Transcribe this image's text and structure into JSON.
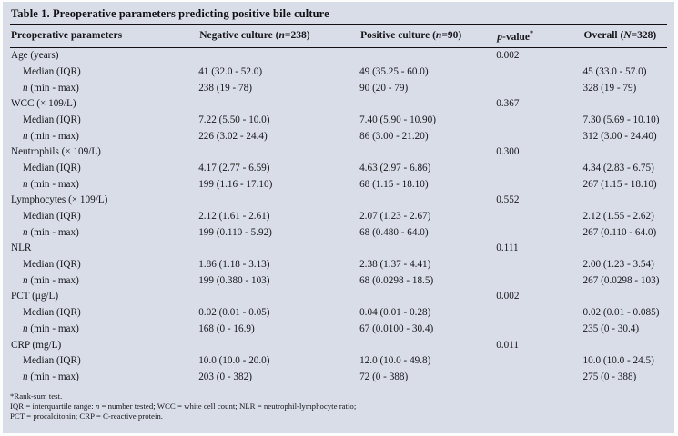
{
  "table": {
    "title": "Table 1. Preoperative parameters predicting positive bile culture",
    "columns": [
      {
        "name": "preoperative-parameters",
        "segments": [
          {
            "t": "Preoperative parameters"
          }
        ]
      },
      {
        "name": "negative-culture",
        "segments": [
          {
            "t": "Negative culture ("
          },
          {
            "t": "n",
            "i": true
          },
          {
            "t": "=238)"
          }
        ]
      },
      {
        "name": "positive-culture",
        "segments": [
          {
            "t": "Positive culture ("
          },
          {
            "t": "n",
            "i": true
          },
          {
            "t": "=90)"
          }
        ]
      },
      {
        "name": "p-value",
        "segments": [
          {
            "t": "p",
            "i": true
          },
          {
            "t": "-value"
          },
          {
            "t": "*",
            "sup": true
          }
        ]
      },
      {
        "name": "overall",
        "segments": [
          {
            "t": "Overall ("
          },
          {
            "t": "N",
            "i": true
          },
          {
            "t": "=328)"
          }
        ]
      }
    ],
    "rows": [
      {
        "type": "group",
        "label": [
          {
            "t": "Age (years)"
          }
        ],
        "cells": [
          "",
          "",
          "0.002",
          ""
        ]
      },
      {
        "type": "sub",
        "label": [
          {
            "t": "Median (IQR)"
          }
        ],
        "cells": [
          "41 (32.0 - 52.0)",
          "49 (35.25 - 60.0)",
          "",
          "45 (33.0 - 57.0)"
        ]
      },
      {
        "type": "sub",
        "label": [
          {
            "t": "n",
            "i": true
          },
          {
            "t": " (min - max)"
          }
        ],
        "cells": [
          "238 (19 - 78)",
          "90 (20 - 79)",
          "",
          "328 (19 - 79)"
        ]
      },
      {
        "type": "group",
        "label": [
          {
            "t": "WCC (× 109/L)"
          }
        ],
        "cells": [
          "",
          "",
          "0.367",
          ""
        ]
      },
      {
        "type": "sub",
        "label": [
          {
            "t": "Median (IQR)"
          }
        ],
        "cells": [
          "7.22 (5.50 - 10.0)",
          "7.40 (5.90 - 10.90)",
          "",
          "7.30 (5.69 - 10.10)"
        ]
      },
      {
        "type": "sub",
        "label": [
          {
            "t": "n",
            "i": true
          },
          {
            "t": " (min - max)"
          }
        ],
        "cells": [
          "226 (3.02 - 24.4)",
          "86 (3.00 - 21.20)",
          "",
          "312 (3.00 - 24.40)"
        ]
      },
      {
        "type": "group",
        "label": [
          {
            "t": "Neutrophils (× 109/L)"
          }
        ],
        "cells": [
          "",
          "",
          "0.300",
          ""
        ]
      },
      {
        "type": "sub",
        "label": [
          {
            "t": "Median (IQR)"
          }
        ],
        "cells": [
          "4.17 (2.77 - 6.59)",
          "4.63 (2.97 - 6.86)",
          "",
          "4.34 (2.83 - 6.75)"
        ]
      },
      {
        "type": "sub",
        "label": [
          {
            "t": "n",
            "i": true
          },
          {
            "t": " (min - max)"
          }
        ],
        "cells": [
          "199 (1.16 - 17.10)",
          "68 (1.15 - 18.10)",
          "",
          "267 (1.15 - 18.10)"
        ]
      },
      {
        "type": "group",
        "label": [
          {
            "t": "Lymphocytes (× 109/L)"
          }
        ],
        "cells": [
          "",
          "",
          "0.552",
          ""
        ]
      },
      {
        "type": "sub",
        "label": [
          {
            "t": "Median (IQR)"
          }
        ],
        "cells": [
          "2.12 (1.61 - 2.61)",
          "2.07 (1.23 - 2.67)",
          "",
          "2.12 (1.55 - 2.62)"
        ]
      },
      {
        "type": "sub",
        "label": [
          {
            "t": "n",
            "i": true
          },
          {
            "t": " (min - max)"
          }
        ],
        "cells": [
          "199 (0.110 - 5.92)",
          "68 (0.480 - 64.0)",
          "",
          "267 (0.110 - 64.0)"
        ]
      },
      {
        "type": "group",
        "label": [
          {
            "t": "NLR"
          }
        ],
        "cells": [
          "",
          "",
          "0.111",
          ""
        ]
      },
      {
        "type": "sub",
        "label": [
          {
            "t": "Median (IQR)"
          }
        ],
        "cells": [
          "1.86 (1.18 - 3.13)",
          "2.38 (1.37 - 4.41)",
          "",
          "2.00 (1.23 - 3.54)"
        ]
      },
      {
        "type": "sub",
        "label": [
          {
            "t": "n",
            "i": true
          },
          {
            "t": " (min - max)"
          }
        ],
        "cells": [
          "199 (0.380 - 103)",
          "68 (0.0298 - 18.5)",
          "",
          "267 (0.0298 - 103)"
        ]
      },
      {
        "type": "group",
        "label": [
          {
            "t": "PCT (μg/L)"
          }
        ],
        "cells": [
          "",
          "",
          "0.002",
          ""
        ]
      },
      {
        "type": "sub",
        "label": [
          {
            "t": "Median (IQR)"
          }
        ],
        "cells": [
          "0.02 (0.01 - 0.05)",
          "0.04 (0.01 - 0.28)",
          "",
          "0.02 (0.01 - 0.085)"
        ]
      },
      {
        "type": "sub",
        "label": [
          {
            "t": "n",
            "i": true
          },
          {
            "t": " (min - max)"
          }
        ],
        "cells": [
          "168 (0 - 16.9)",
          "67 (0.0100 - 30.4)",
          "",
          "235 (0 - 30.4)"
        ]
      },
      {
        "type": "group",
        "label": [
          {
            "t": "CRP (mg/L)"
          }
        ],
        "cells": [
          "",
          "",
          "0.011",
          ""
        ]
      },
      {
        "type": "sub",
        "label": [
          {
            "t": "Median (IQR)"
          }
        ],
        "cells": [
          "10.0 (10.0 - 20.0)",
          "12.0 (10.0 - 49.8)",
          "",
          "10.0 (10.0 - 24.5)"
        ]
      },
      {
        "type": "sub",
        "label": [
          {
            "t": "n",
            "i": true
          },
          {
            "t": " (min - max)"
          }
        ],
        "cells": [
          "203 (0 - 382)",
          "72 (0 - 388)",
          "",
          "275 (0 - 388)"
        ]
      }
    ],
    "footnotes": [
      [
        {
          "t": "*Rank-sum test."
        }
      ],
      [
        {
          "t": "IQR = interquartile range: "
        },
        {
          "t": "n",
          "i": true
        },
        {
          "t": " = number tested; WCC = white cell count; NLR = neutrophil-lymphocyte ratio;"
        }
      ],
      [
        {
          "t": "PCT = procalcitonin; CRP = C-reactive protein."
        }
      ]
    ],
    "colors": {
      "panel_background": "#d8dde7",
      "text": "#17171c",
      "rule": "#101014"
    }
  }
}
